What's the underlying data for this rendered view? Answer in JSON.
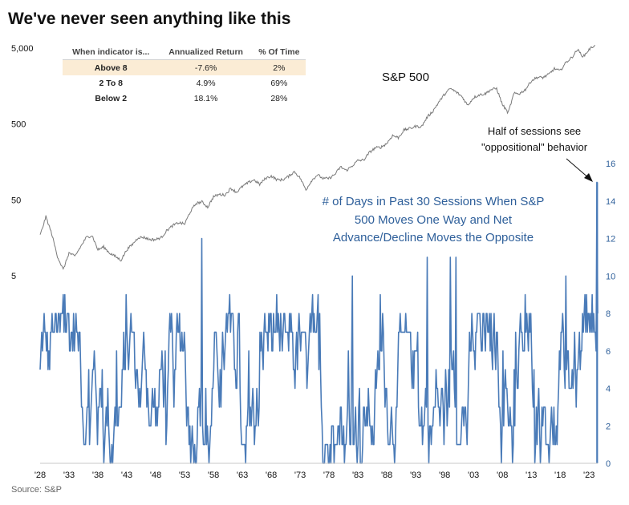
{
  "title": "We've never seen anything like this",
  "source": "Source: S&P",
  "table": {
    "headers": [
      "When indicator is...",
      "Annualized Return",
      "% Of Time"
    ],
    "rows": [
      {
        "label": "Above 8",
        "return": "-7.6%",
        "time": "2%",
        "highlight": true
      },
      {
        "label": "2 To 8",
        "return": "4.9%",
        "time": "69%",
        "highlight": false
      },
      {
        "label": "Below 2",
        "return": "18.1%",
        "time": "28%",
        "highlight": false
      }
    ]
  },
  "annotations": {
    "sp500": "S&P 500",
    "series_note": [
      "# of Days in Past 30 Sessions When S&P",
      "500 Moves One Way and Net",
      "Advance/Decline Moves the Opposite"
    ],
    "callout": [
      "Half of sessions see",
      "\"oppositional\" behavior"
    ]
  },
  "colors": {
    "indicator": "#4a7bb8",
    "price": "#7a7a7a",
    "highlight_row": "#fbecd5",
    "annotation_blue": "#2e5f9a"
  },
  "chart_data": {
    "type": "line",
    "x_range": [
      1928,
      2024.5
    ],
    "x_tick_labels": [
      "'28",
      "'33",
      "'38",
      "'43",
      "'48",
      "'53",
      "'58",
      "'63",
      "'68",
      "'73",
      "'78",
      "'83",
      "'88",
      "'93",
      "'98",
      "'03",
      "'08",
      "'13",
      "'18",
      "'23"
    ],
    "left_axis": {
      "scale": "log",
      "tick_labels": [
        "5,000",
        "500",
        "50",
        "5"
      ],
      "range": [
        5,
        5000
      ]
    },
    "right_axis": {
      "tick_labels": [
        "0",
        "2",
        "4",
        "6",
        "8",
        "10",
        "12",
        "14",
        "16"
      ],
      "range": [
        0,
        16
      ]
    },
    "series": [
      {
        "name": "S&P 500",
        "axis": "left",
        "points": [
          [
            1928,
            17
          ],
          [
            1929,
            30
          ],
          [
            1930,
            18
          ],
          [
            1931,
            9
          ],
          [
            1932,
            6
          ],
          [
            1933,
            10
          ],
          [
            1934,
            9
          ],
          [
            1935,
            12
          ],
          [
            1936,
            16
          ],
          [
            1937,
            17
          ],
          [
            1938,
            11
          ],
          [
            1939,
            12
          ],
          [
            1940,
            10
          ],
          [
            1941,
            9
          ],
          [
            1942,
            8
          ],
          [
            1943,
            11
          ],
          [
            1944,
            13
          ],
          [
            1945,
            16
          ],
          [
            1946,
            16
          ],
          [
            1947,
            15
          ],
          [
            1948,
            15
          ],
          [
            1949,
            16
          ],
          [
            1950,
            20
          ],
          [
            1951,
            23
          ],
          [
            1952,
            25
          ],
          [
            1953,
            24
          ],
          [
            1954,
            35
          ],
          [
            1955,
            45
          ],
          [
            1956,
            47
          ],
          [
            1957,
            40
          ],
          [
            1958,
            55
          ],
          [
            1959,
            59
          ],
          [
            1960,
            58
          ],
          [
            1961,
            71
          ],
          [
            1962,
            63
          ],
          [
            1963,
            75
          ],
          [
            1964,
            84
          ],
          [
            1965,
            92
          ],
          [
            1966,
            80
          ],
          [
            1967,
            96
          ],
          [
            1968,
            103
          ],
          [
            1969,
            92
          ],
          [
            1970,
            92
          ],
          [
            1971,
            102
          ],
          [
            1972,
            118
          ],
          [
            1973,
            97
          ],
          [
            1974,
            68
          ],
          [
            1975,
            90
          ],
          [
            1976,
            107
          ],
          [
            1977,
            95
          ],
          [
            1978,
            96
          ],
          [
            1979,
            108
          ],
          [
            1980,
            136
          ],
          [
            1981,
            122
          ],
          [
            1982,
            140
          ],
          [
            1983,
            165
          ],
          [
            1984,
            167
          ],
          [
            1985,
            211
          ],
          [
            1986,
            242
          ],
          [
            1987,
            247
          ],
          [
            1988,
            277
          ],
          [
            1989,
            353
          ],
          [
            1990,
            330
          ],
          [
            1991,
            417
          ],
          [
            1992,
            436
          ],
          [
            1993,
            466
          ],
          [
            1994,
            459
          ],
          [
            1995,
            616
          ],
          [
            1996,
            741
          ],
          [
            1997,
            970
          ],
          [
            1998,
            1229
          ],
          [
            1999,
            1469
          ],
          [
            2000,
            1320
          ],
          [
            2001,
            1148
          ],
          [
            2002,
            880
          ],
          [
            2003,
            1112
          ],
          [
            2004,
            1212
          ],
          [
            2005,
            1248
          ],
          [
            2006,
            1418
          ],
          [
            2007,
            1468
          ],
          [
            2008,
            903
          ],
          [
            2009,
            700
          ],
          [
            2010,
            1258
          ],
          [
            2011,
            1258
          ],
          [
            2012,
            1426
          ],
          [
            2013,
            1848
          ],
          [
            2014,
            2059
          ],
          [
            2015,
            2044
          ],
          [
            2016,
            2239
          ],
          [
            2017,
            2674
          ],
          [
            2018,
            2507
          ],
          [
            2019,
            3231
          ],
          [
            2020,
            3756
          ],
          [
            2021,
            4766
          ],
          [
            2022,
            3840
          ],
          [
            2023,
            4770
          ],
          [
            2024,
            5500
          ]
        ]
      },
      {
        "name": "# of Days in Past 30 Sessions When S&P 500 Moves One Way and Net Advance/Decline Moves the Opposite",
        "axis": "right",
        "typical_range": [
          2,
          8
        ],
        "peaks": [
          [
            1956,
            12
          ],
          [
            1982,
            10
          ],
          [
            1995,
            11
          ],
          [
            1999,
            11
          ],
          [
            2000,
            11
          ],
          [
            2019,
            10
          ],
          [
            2024.4,
            15
          ]
        ]
      }
    ]
  }
}
